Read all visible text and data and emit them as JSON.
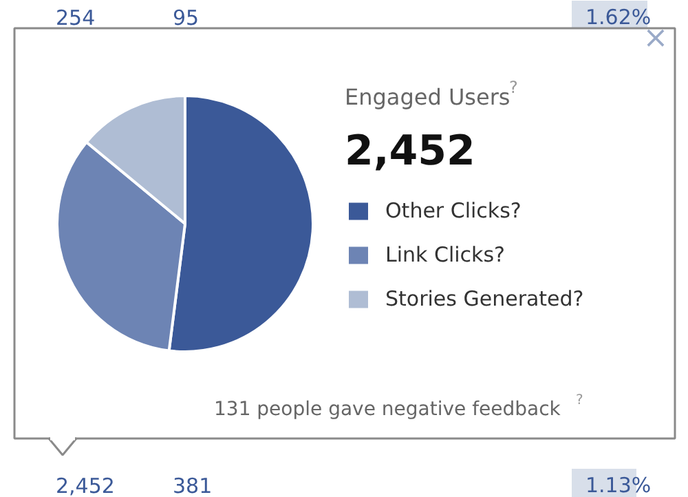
{
  "chart_data": {
    "type": "pie",
    "title": "Engaged Users$^{?}$",
    "subtitle": "2,452",
    "categories": [
      "Other Clicks?",
      "Link Clicks?",
      "Stories Generated?"
    ],
    "values": [
      52,
      34,
      14
    ],
    "colors": [
      "#3b5998",
      "#6d84b4",
      "#afbdd4"
    ],
    "legend": "right",
    "annotations": [
      "131 people gave negative feedback$^{?}$",
      "×",
      "254",
      "95",
      "1.62%",
      "2,452",
      "381",
      "1.13%"
    ]
  }
}
